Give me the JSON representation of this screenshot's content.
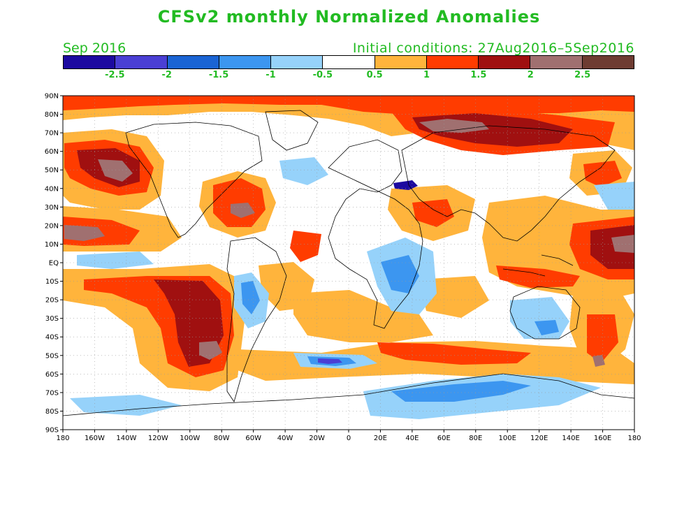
{
  "title": "CFSv2 monthly Normalized Anomalies",
  "forecast_month": "Sep 2016",
  "initial_conditions": "Initial conditions: 27Aug2016–5Sep2016",
  "colorbar": {
    "colors": [
      "#1c0aa0",
      "#4a3fd4",
      "#1a64d4",
      "#3c96f0",
      "#96d2fa",
      "#ffffff",
      "#ffb43c",
      "#ff3c00",
      "#a01010",
      "#a07070",
      "#6e3c32"
    ],
    "labels": [
      "-2.5",
      "-2",
      "-1.5",
      "-1",
      "-0.5",
      "0.5",
      "1",
      "1.5",
      "2",
      "2.5"
    ]
  },
  "map": {
    "lat_labels": [
      "90N",
      "80N",
      "70N",
      "60N",
      "50N",
      "40N",
      "30N",
      "20N",
      "10N",
      "EQ",
      "10S",
      "20S",
      "30S",
      "40S",
      "50S",
      "60S",
      "70S",
      "80S",
      "90S"
    ],
    "lon_labels": [
      "180",
      "160W",
      "140W",
      "120W",
      "100W",
      "80W",
      "60W",
      "40W",
      "20W",
      "0",
      "20E",
      "40E",
      "60E",
      "80E",
      "100E",
      "120E",
      "140E",
      "160E",
      "180"
    ]
  }
}
